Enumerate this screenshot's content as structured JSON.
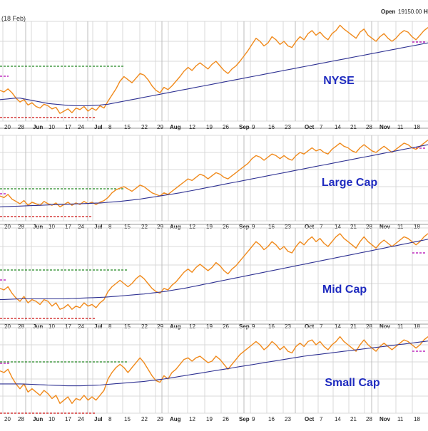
{
  "header": {
    "date_label": "(18 Feb)",
    "open_label": "Open",
    "open_value": "19150.00",
    "hi_label": "H"
  },
  "colors": {
    "price_line": "#f08a1c",
    "moving_average": "#2e3192",
    "panel_label": "#1f2bbf",
    "resistance_line": "#228822",
    "support_line": "#cc1111",
    "marker_line": "#b000b0",
    "grid": "#d9d9d9"
  },
  "x_axis": {
    "tick_labels": [
      "20",
      "28",
      "Jun",
      "10",
      "17",
      "24",
      "Jul",
      "8",
      "15",
      "22",
      "29",
      "Aug",
      "12",
      "19",
      "26",
      "Sep",
      "9",
      "16",
      "23",
      "Oct",
      "7",
      "14",
      "21",
      "28",
      "Nov",
      "11",
      "18"
    ],
    "bold_labels": [
      "Jun",
      "Jul",
      "Aug",
      "Sep",
      "Oct",
      "Nov"
    ]
  },
  "chart_data": [
    {
      "type": "line",
      "title": "NYSE",
      "series": [
        {
          "values": [
            60,
            58,
            62,
            57,
            50,
            45,
            48,
            41,
            44,
            39,
            37,
            42,
            40,
            36,
            38,
            30,
            33,
            36,
            31,
            37,
            35,
            39,
            33,
            37,
            34,
            40,
            37,
            46,
            54,
            62,
            72,
            78,
            74,
            70,
            76,
            82,
            80,
            74,
            66,
            60,
            57,
            64,
            61,
            66,
            72,
            78,
            85,
            90,
            86,
            92,
            96,
            92,
            88,
            94,
            98,
            92,
            86,
            82,
            88,
            92,
            98,
            105,
            112,
            120,
            128,
            124,
            118,
            122,
            130,
            126,
            120,
            124,
            118,
            116,
            124,
            130,
            126,
            134,
            138,
            132,
            136,
            130,
            126,
            134,
            138,
            145,
            140,
            136,
            132,
            128,
            136,
            140,
            132,
            128,
            124,
            130,
            134,
            128,
            124,
            128,
            134,
            138,
            136,
            130,
            126,
            132,
            138,
            142
          ]
        },
        {
          "values": [
            48,
            48.5,
            49,
            49.5,
            50,
            50,
            49,
            48,
            47,
            46,
            45,
            44,
            43,
            42.5,
            42,
            41.5,
            41,
            40.5,
            40.2,
            40,
            40,
            40,
            40,
            40.3,
            40.6,
            41,
            41.5,
            42,
            43,
            44,
            45,
            46,
            47,
            48,
            49,
            50,
            51,
            52,
            53,
            54,
            55,
            56,
            57,
            58,
            59,
            60,
            61,
            62,
            63,
            64,
            65,
            66,
            67,
            68,
            69,
            70,
            71,
            72,
            73,
            74,
            75,
            76,
            77,
            78,
            79,
            80,
            81,
            82,
            83,
            84,
            85,
            86,
            87,
            88,
            89,
            90,
            91,
            92,
            93,
            94,
            95,
            96,
            97,
            98,
            99,
            100,
            101,
            102,
            103,
            104,
            105,
            106,
            107,
            108,
            109,
            110,
            111,
            112,
            113,
            114,
            115,
            116,
            117,
            118,
            119,
            120,
            121,
            122
          ]
        }
      ]
    },
    {
      "type": "line",
      "title": "Large Cap",
      "series": [
        {
          "values": [
            62,
            60,
            64,
            58,
            55,
            52,
            56,
            50,
            54,
            52,
            50,
            55,
            52,
            50,
            53,
            48,
            51,
            54,
            50,
            53,
            51,
            55,
            52,
            54,
            51,
            54,
            56,
            60,
            66,
            70,
            72,
            74,
            71,
            68,
            72,
            76,
            74,
            70,
            66,
            64,
            62,
            66,
            64,
            68,
            72,
            76,
            80,
            84,
            82,
            86,
            90,
            88,
            84,
            88,
            92,
            90,
            86,
            84,
            88,
            92,
            96,
            100,
            104,
            110,
            114,
            112,
            108,
            112,
            116,
            114,
            110,
            114,
            110,
            108,
            114,
            118,
            116,
            120,
            124,
            120,
            122,
            118,
            116,
            122,
            126,
            130,
            126,
            124,
            120,
            118,
            124,
            128,
            124,
            120,
            118,
            122,
            126,
            122,
            118,
            122,
            126,
            130,
            128,
            124,
            122,
            126,
            130,
            134
          ]
        },
        {
          "values": [
            48,
            48.2,
            48.4,
            48.6,
            48.8,
            49,
            49.2,
            49.4,
            49.6,
            49.8,
            50,
            50.2,
            50.4,
            50.6,
            50.8,
            51,
            51.2,
            51.4,
            51.6,
            51.8,
            52,
            52.2,
            52.4,
            52.6,
            52.8,
            53,
            53.4,
            53.8,
            54.2,
            54.6,
            55,
            55.6,
            56.2,
            56.8,
            57.4,
            58,
            58.8,
            59.6,
            60.4,
            61.2,
            62,
            62.8,
            63.6,
            64.4,
            65.2,
            66,
            67,
            68,
            69,
            70,
            71,
            72,
            73,
            74,
            75,
            76,
            77,
            78,
            79,
            80,
            81,
            82,
            83,
            84,
            85,
            86,
            87,
            88,
            89,
            90,
            91,
            92,
            93,
            94,
            95,
            96,
            97,
            98,
            99,
            100,
            101,
            102,
            103,
            104,
            105,
            106,
            107,
            108,
            109,
            110,
            111,
            112,
            113,
            114,
            115,
            116,
            117,
            118,
            119,
            120,
            121,
            122,
            123,
            124,
            125,
            126,
            127,
            128
          ]
        }
      ]
    },
    {
      "type": "line",
      "title": "Mid Cap",
      "series": [
        {
          "values": [
            60,
            58,
            62,
            54,
            48,
            44,
            50,
            42,
            46,
            44,
            40,
            46,
            44,
            38,
            42,
            34,
            36,
            40,
            34,
            38,
            36,
            42,
            38,
            40,
            36,
            42,
            46,
            56,
            62,
            66,
            70,
            66,
            62,
            66,
            72,
            76,
            72,
            66,
            60,
            56,
            54,
            60,
            58,
            64,
            68,
            74,
            80,
            84,
            80,
            86,
            90,
            86,
            82,
            86,
            92,
            88,
            82,
            78,
            84,
            88,
            94,
            100,
            106,
            112,
            118,
            114,
            108,
            112,
            118,
            114,
            108,
            112,
            106,
            104,
            112,
            118,
            114,
            120,
            124,
            118,
            122,
            116,
            112,
            118,
            124,
            128,
            122,
            118,
            114,
            110,
            118,
            124,
            118,
            114,
            110,
            116,
            120,
            116,
            112,
            116,
            120,
            124,
            122,
            118,
            114,
            118,
            124,
            128
          ]
        },
        {
          "values": [
            46,
            46.2,
            46.4,
            46.6,
            46.8,
            47,
            47,
            47,
            47,
            47,
            47,
            47,
            47,
            47,
            47,
            47,
            47,
            47.2,
            47.4,
            47.6,
            47.8,
            48,
            48.2,
            48.4,
            48.6,
            48.8,
            49,
            49.4,
            49.8,
            50.2,
            50.6,
            51,
            51.4,
            51.8,
            52.2,
            52.6,
            53,
            53.6,
            54.2,
            54.8,
            55.4,
            56,
            56.8,
            57.6,
            58.4,
            59.2,
            60,
            61,
            62,
            63,
            64,
            65,
            66,
            67,
            68,
            69,
            70,
            71,
            72,
            73,
            74,
            75,
            76,
            77,
            78,
            79,
            80,
            81,
            82,
            83,
            84,
            85,
            86,
            87,
            88,
            89,
            90,
            91,
            92,
            93,
            94,
            95,
            96,
            97,
            98,
            99,
            100,
            101,
            102,
            103,
            104,
            105,
            106,
            107,
            108,
            109,
            110,
            111,
            112,
            113,
            114,
            115,
            116,
            117,
            118,
            119,
            120,
            121
          ]
        }
      ]
    },
    {
      "type": "line",
      "title": "Small Cap",
      "series": [
        {
          "values": [
            62,
            60,
            64,
            54,
            46,
            40,
            46,
            36,
            40,
            36,
            32,
            38,
            34,
            28,
            32,
            22,
            26,
            30,
            22,
            28,
            26,
            32,
            26,
            30,
            26,
            32,
            38,
            52,
            60,
            66,
            70,
            66,
            60,
            66,
            72,
            78,
            72,
            64,
            56,
            50,
            48,
            56,
            52,
            60,
            64,
            70,
            76,
            78,
            74,
            78,
            80,
            76,
            72,
            74,
            80,
            76,
            70,
            64,
            70,
            76,
            82,
            86,
            90,
            94,
            98,
            94,
            88,
            92,
            98,
            94,
            88,
            92,
            86,
            84,
            92,
            96,
            92,
            98,
            100,
            94,
            98,
            92,
            88,
            94,
            98,
            104,
            98,
            94,
            90,
            86,
            94,
            100,
            94,
            90,
            86,
            92,
            96,
            92,
            88,
            92,
            96,
            100,
            98,
            94,
            90,
            94,
            100,
            104
          ]
        },
        {
          "values": [
            46,
            46,
            46,
            46,
            46,
            46,
            45.8,
            45.6,
            45.4,
            45.2,
            45,
            44.8,
            44.6,
            44.4,
            44.2,
            44,
            43.8,
            43.6,
            43.6,
            43.6,
            43.6,
            43.8,
            44,
            44.2,
            44.4,
            44.6,
            45,
            45.4,
            45.8,
            46.2,
            46.6,
            47,
            47.4,
            47.8,
            48.2,
            48.6,
            49,
            49.6,
            50.2,
            50.8,
            51.4,
            52,
            52.8,
            53.6,
            54.4,
            55.2,
            56,
            56.8,
            57.6,
            58.4,
            59.2,
            60,
            60.8,
            61.6,
            62.4,
            63.2,
            64,
            64.8,
            65.6,
            66.4,
            67.2,
            68,
            68.8,
            69.6,
            70.4,
            71.2,
            72,
            72.8,
            73.6,
            74.4,
            75.2,
            76,
            76.8,
            77.6,
            78.4,
            79.2,
            80,
            80.6,
            81.2,
            81.8,
            82.4,
            83,
            83.6,
            84.2,
            84.8,
            85.4,
            86,
            86.6,
            87.2,
            87.8,
            88.4,
            89,
            89.6,
            90.2,
            90.8,
            91.4,
            92,
            92.6,
            93.2,
            93.8,
            94.4,
            95,
            95.6,
            96.2,
            96.8,
            97.4,
            98,
            98.6
          ]
        }
      ]
    }
  ]
}
